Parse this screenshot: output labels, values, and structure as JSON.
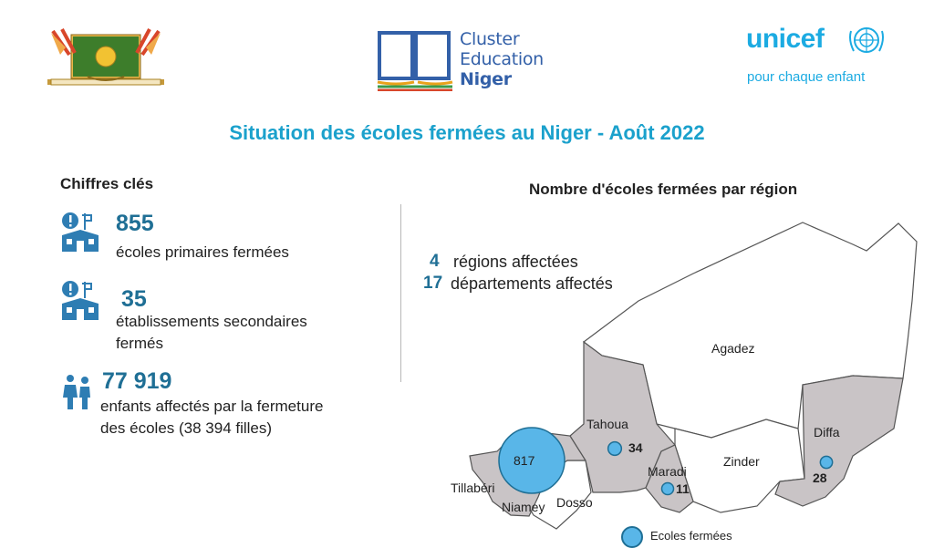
{
  "header": {
    "coat_of_arms_icon": "niger-coat-of-arms-icon",
    "cluster_logo": {
      "line1": "Cluster",
      "line2": "Education",
      "line3": "Niger",
      "icon": "open-book-icon"
    },
    "unicef_logo": {
      "word": "unicef",
      "tagline": "pour chaque enfant",
      "icon": "unicef-emblem-icon"
    }
  },
  "title": "Situation des écoles fermées au Niger - Août 2022",
  "key_figures": {
    "label": "Chiffres clés",
    "items": [
      {
        "value": "855",
        "text": "écoles primaires fermées",
        "icon": "school-alert-icon"
      },
      {
        "value": "35",
        "text_line1": "établissements secondaires",
        "text_line2": "fermés",
        "icon": "school-alert-icon"
      },
      {
        "value": "77 919",
        "text_line1": "enfants affectés par la fermeture",
        "text_line2": "des écoles (38 394 filles)",
        "icon": "children-icon"
      }
    ]
  },
  "map_section": {
    "label": "Nombre d'écoles fermées par région",
    "regions_affected": {
      "value": "4",
      "text": "régions affectées"
    },
    "departments_affected": {
      "value": "17",
      "text": "départements affectés"
    },
    "region_names": [
      "Agadez",
      "Tahoua",
      "Diffa",
      "Zinder",
      "Maradi",
      "Tillabéri",
      "Niamey",
      "Dosso"
    ],
    "legend": "Ecoles fermées",
    "colors": {
      "affected_fill": "#c9c4c6",
      "bubble": "#59b6e8",
      "bubble_stroke": "#1f6f95",
      "accent": "#1ba1cc"
    }
  },
  "chart_data": {
    "type": "bubble-map",
    "series": [
      {
        "name": "Ecoles fermées",
        "points": [
          {
            "region": "Tillabéri",
            "value": 817
          },
          {
            "region": "Tahoua",
            "value": 34
          },
          {
            "region": "Diffa",
            "value": 28
          },
          {
            "region": "Maradi",
            "value": 11
          }
        ]
      }
    ]
  }
}
